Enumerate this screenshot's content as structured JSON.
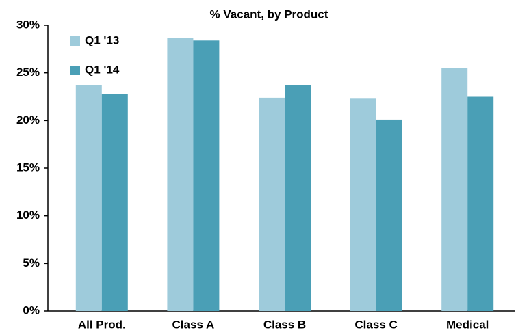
{
  "chart_data": {
    "type": "bar",
    "title": "% Vacant, by Product",
    "categories": [
      "All Prod.",
      "Class A",
      "Class B",
      "Class C",
      "Medical"
    ],
    "series": [
      {
        "name": "Q1 '13",
        "color": "#9ecbdb",
        "values": [
          23.7,
          28.7,
          22.4,
          22.3,
          25.5
        ]
      },
      {
        "name": "Q1 '14",
        "color": "#4a9fb6",
        "values": [
          22.8,
          28.4,
          23.7,
          20.1,
          22.5
        ]
      }
    ],
    "ylim": [
      0,
      30
    ],
    "yticks": [
      {
        "value": 0,
        "label": "0%"
      },
      {
        "value": 5,
        "label": "5%"
      },
      {
        "value": 10,
        "label": "10%"
      },
      {
        "value": 15,
        "label": "15%"
      },
      {
        "value": 20,
        "label": "20%"
      },
      {
        "value": 25,
        "label": "25%"
      },
      {
        "value": 30,
        "label": "30%"
      }
    ],
    "grid": false,
    "legend": "top-left"
  }
}
